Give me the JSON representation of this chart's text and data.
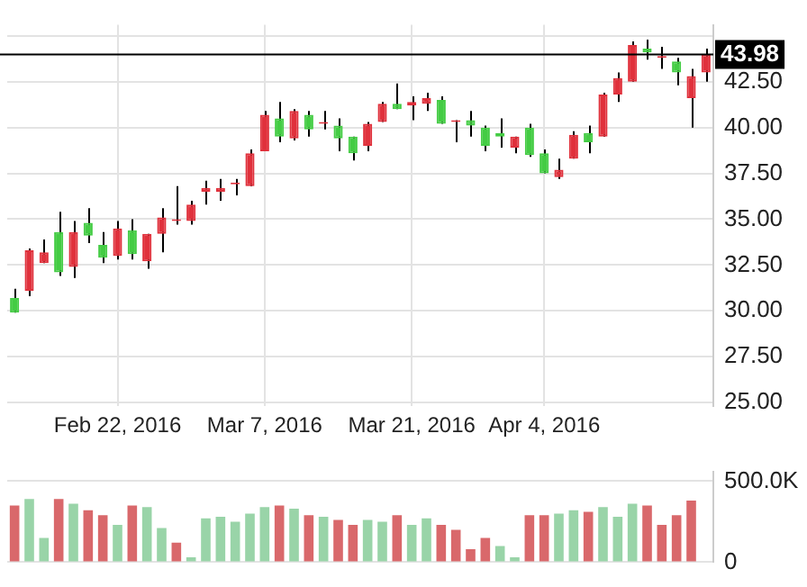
{
  "chart_data": [
    {
      "type": "candlestick",
      "categories": [
        null,
        null,
        null,
        null,
        null,
        null,
        null,
        "Feb 22, 2016",
        null,
        null,
        null,
        null,
        null,
        null,
        null,
        null,
        null,
        "Mar 7, 2016",
        null,
        null,
        null,
        null,
        null,
        null,
        null,
        null,
        null,
        "Mar 21, 2016",
        null,
        null,
        null,
        null,
        null,
        null,
        null,
        null,
        "Apr 4, 2016",
        null,
        null,
        null,
        null,
        null,
        null,
        null,
        null,
        null,
        null,
        null
      ],
      "ohlc": [
        [
          30.7,
          31.2,
          29.9,
          29.9
        ],
        [
          31.1,
          33.4,
          30.8,
          33.3
        ],
        [
          32.6,
          33.9,
          32.6,
          33.2
        ],
        [
          34.3,
          35.4,
          31.9,
          32.1
        ],
        [
          32.4,
          34.9,
          31.8,
          34.3
        ],
        [
          34.8,
          35.6,
          33.7,
          34.1
        ],
        [
          33.6,
          34.3,
          32.6,
          32.9
        ],
        [
          33.0,
          34.9,
          32.8,
          34.5
        ],
        [
          34.4,
          35.0,
          32.8,
          33.1
        ],
        [
          32.7,
          34.2,
          32.3,
          34.2
        ],
        [
          34.2,
          35.6,
          33.2,
          35.1
        ],
        [
          34.9,
          36.8,
          34.7,
          35.0
        ],
        [
          34.9,
          36.0,
          34.7,
          35.8
        ],
        [
          36.5,
          37.1,
          35.8,
          36.7
        ],
        [
          36.5,
          37.2,
          36.0,
          36.7
        ],
        [
          36.9,
          37.2,
          36.3,
          36.9
        ],
        [
          36.8,
          38.8,
          36.8,
          38.6
        ],
        [
          38.7,
          40.9,
          38.7,
          40.7
        ],
        [
          40.5,
          41.4,
          39.2,
          39.5
        ],
        [
          39.4,
          41.0,
          39.3,
          40.9
        ],
        [
          40.7,
          40.9,
          39.5,
          39.9
        ],
        [
          40.2,
          40.9,
          39.9,
          40.2
        ],
        [
          40.1,
          40.5,
          38.7,
          39.4
        ],
        [
          39.5,
          39.5,
          38.2,
          38.6
        ],
        [
          39.0,
          40.3,
          38.7,
          40.2
        ],
        [
          40.3,
          41.4,
          40.3,
          41.3
        ],
        [
          41.3,
          42.4,
          41.0,
          41.0
        ],
        [
          41.2,
          41.7,
          40.4,
          41.4
        ],
        [
          41.3,
          41.9,
          40.9,
          41.6
        ],
        [
          41.5,
          41.7,
          40.2,
          40.2
        ],
        [
          40.3,
          40.4,
          39.2,
          40.3
        ],
        [
          40.4,
          40.9,
          39.5,
          40.1
        ],
        [
          40.0,
          40.1,
          38.7,
          39.0
        ],
        [
          39.7,
          40.5,
          38.9,
          39.5
        ],
        [
          38.9,
          39.5,
          38.6,
          39.5
        ],
        [
          40.0,
          40.2,
          38.4,
          38.5
        ],
        [
          38.6,
          38.8,
          37.5,
          37.5
        ],
        [
          37.3,
          38.3,
          37.2,
          37.7
        ],
        [
          38.3,
          39.8,
          38.3,
          39.6
        ],
        [
          39.7,
          40.1,
          38.6,
          39.2
        ],
        [
          39.5,
          41.9,
          39.5,
          41.8
        ],
        [
          41.8,
          43.0,
          41.4,
          42.7
        ],
        [
          42.5,
          44.7,
          42.5,
          44.5
        ],
        [
          44.3,
          44.8,
          43.7,
          44.1
        ],
        [
          43.8,
          44.4,
          43.2,
          43.8
        ],
        [
          43.6,
          43.8,
          42.3,
          43.0
        ],
        [
          41.6,
          43.2,
          40.0,
          42.8
        ],
        [
          43.0,
          44.3,
          42.5,
          43.98
        ]
      ],
      "colors": [
        "#44cc44",
        "#e0313c",
        "#e0313c",
        "#44cc44",
        "#e0313c",
        "#44cc44",
        "#44cc44",
        "#e0313c",
        "#44cc44",
        "#e0313c",
        "#e0313c",
        "#e0313c",
        "#e0313c",
        "#e0313c",
        "#e0313c",
        "#e0313c",
        "#e0313c",
        "#e0313c",
        "#44cc44",
        "#e0313c",
        "#44cc44",
        "#e0313c",
        "#44cc44",
        "#44cc44",
        "#e0313c",
        "#e0313c",
        "#44cc44",
        "#e0313c",
        "#e0313c",
        "#44cc44",
        "#e0313c",
        "#44cc44",
        "#44cc44",
        "#44cc44",
        "#e0313c",
        "#44cc44",
        "#44cc44",
        "#e0313c",
        "#e0313c",
        "#44cc44",
        "#e0313c",
        "#e0313c",
        "#e0313c",
        "#44cc44",
        "#e0313c",
        "#44cc44",
        "#e0313c",
        "#e0313c"
      ],
      "ylim": [
        24.8,
        45.6
      ],
      "yticks": [
        {
          "value": 25,
          "label": "25.00"
        },
        {
          "value": 27.5,
          "label": "27.50"
        },
        {
          "value": 30,
          "label": "30.00"
        },
        {
          "value": 32.5,
          "label": "32.50"
        },
        {
          "value": 35,
          "label": "35.00"
        },
        {
          "value": 37.5,
          "label": "37.50"
        },
        {
          "value": 40,
          "label": "40.00"
        },
        {
          "value": 42.5,
          "label": "42.50"
        },
        {
          "value": 45,
          "label": null
        }
      ],
      "ref_lines": [
        {
          "axis": "y",
          "value": 43.98,
          "label": "43.98",
          "color": "#000000"
        }
      ],
      "grid": true
    },
    {
      "type": "bar",
      "categories": [
        null,
        null,
        null,
        null,
        null,
        null,
        null,
        null,
        null,
        null,
        null,
        null,
        null,
        null,
        null,
        null,
        null,
        null,
        null,
        null,
        null,
        null,
        null,
        null,
        null,
        null,
        null,
        null,
        null,
        null,
        null,
        null,
        null,
        null,
        null,
        null,
        null,
        null,
        null,
        null,
        null,
        null,
        null,
        null,
        null,
        null,
        null,
        null
      ],
      "values": [
        350000,
        390000,
        150000,
        390000,
        360000,
        320000,
        290000,
        230000,
        350000,
        340000,
        210000,
        120000,
        30000,
        270000,
        280000,
        250000,
        300000,
        340000,
        350000,
        330000,
        290000,
        280000,
        260000,
        230000,
        260000,
        250000,
        290000,
        230000,
        270000,
        230000,
        200000,
        80000,
        150000,
        100000,
        30000,
        290000,
        290000,
        300000,
        320000,
        310000,
        340000,
        280000,
        360000,
        350000,
        230000,
        290000,
        380000,
        null
      ],
      "colors": [
        "#d9686b",
        "#99d4a8",
        "#99d4a8",
        "#d9686b",
        "#99d4a8",
        "#d9686b",
        "#d9686b",
        "#99d4a8",
        "#d9686b",
        "#99d4a8",
        "#99d4a8",
        "#d9686b",
        "#99d4a8",
        "#99d4a8",
        "#99d4a8",
        "#99d4a8",
        "#99d4a8",
        "#99d4a8",
        "#d9686b",
        "#99d4a8",
        "#d9686b",
        "#99d4a8",
        "#d9686b",
        "#d9686b",
        "#99d4a8",
        "#99d4a8",
        "#d9686b",
        "#99d4a8",
        "#99d4a8",
        "#d9686b",
        "#d9686b",
        "#d9686b",
        "#d9686b",
        "#99d4a8",
        "#99d4a8",
        "#d9686b",
        "#d9686b",
        "#99d4a8",
        "#99d4a8",
        "#d9686b",
        "#99d4a8",
        "#99d4a8",
        "#99d4a8",
        "#d9686b",
        "#d9686b",
        "#d9686b",
        "#d9686b",
        "#d9686b"
      ],
      "ylim": [
        0,
        560000
      ],
      "yticks": [
        {
          "value": 0,
          "label": "0"
        },
        {
          "value": 500000,
          "label": "500.0K"
        }
      ],
      "grid": "y",
      "tick_labels": "y"
    }
  ]
}
